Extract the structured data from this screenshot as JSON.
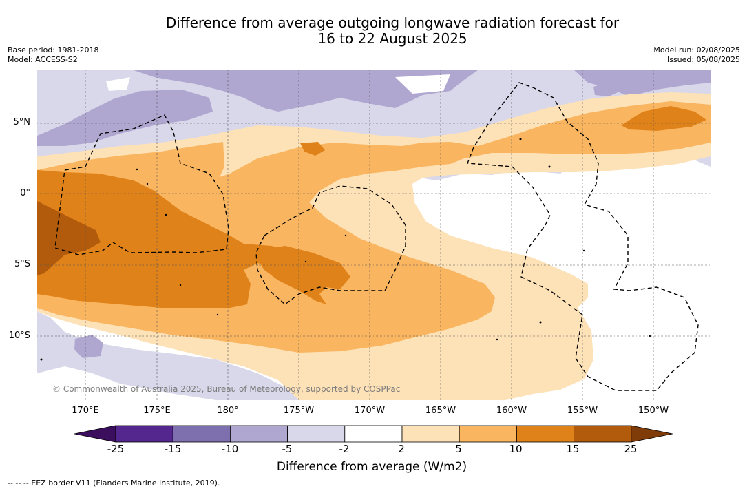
{
  "title": {
    "line1": "Difference from average outgoing longwave radiation forecast for",
    "line2": "16 to 22 August 2025"
  },
  "meta_left": {
    "base_period": "Base period: 1981-2018",
    "model": "Model: ACCESS-S2"
  },
  "meta_right": {
    "model_run": "Model run: 02/08/2025",
    "issued": "Issued: 05/08/2025"
  },
  "map": {
    "lat_labels": [
      "5°N",
      "0°",
      "5°S",
      "10°S"
    ],
    "lon_labels": [
      "170°E",
      "175°E",
      "180°",
      "175°W",
      "170°W",
      "165°W",
      "160°W",
      "155°W",
      "150°W"
    ],
    "credit": "© Commonwealth of Australia 2025, Bureau of Meteorology, supported by COSPPac"
  },
  "colorbar": {
    "ticks": [
      "-25",
      "-15",
      "-10",
      "-5",
      "-2",
      "2",
      "5",
      "10",
      "15",
      "25"
    ],
    "colors": [
      "#3b0f5e",
      "#54278f",
      "#7e6fae",
      "#b0a7d1",
      "#d8d8ea",
      "#ffffff",
      "#fde1b7",
      "#f9b55f",
      "#e0821a",
      "#b25b0c",
      "#7f3b08"
    ],
    "label": "Difference from average (W/m2)"
  },
  "legend": {
    "eez_note": "--  --  -- EEZ border V11 (Flanders Marine Institute, 2019)."
  }
}
